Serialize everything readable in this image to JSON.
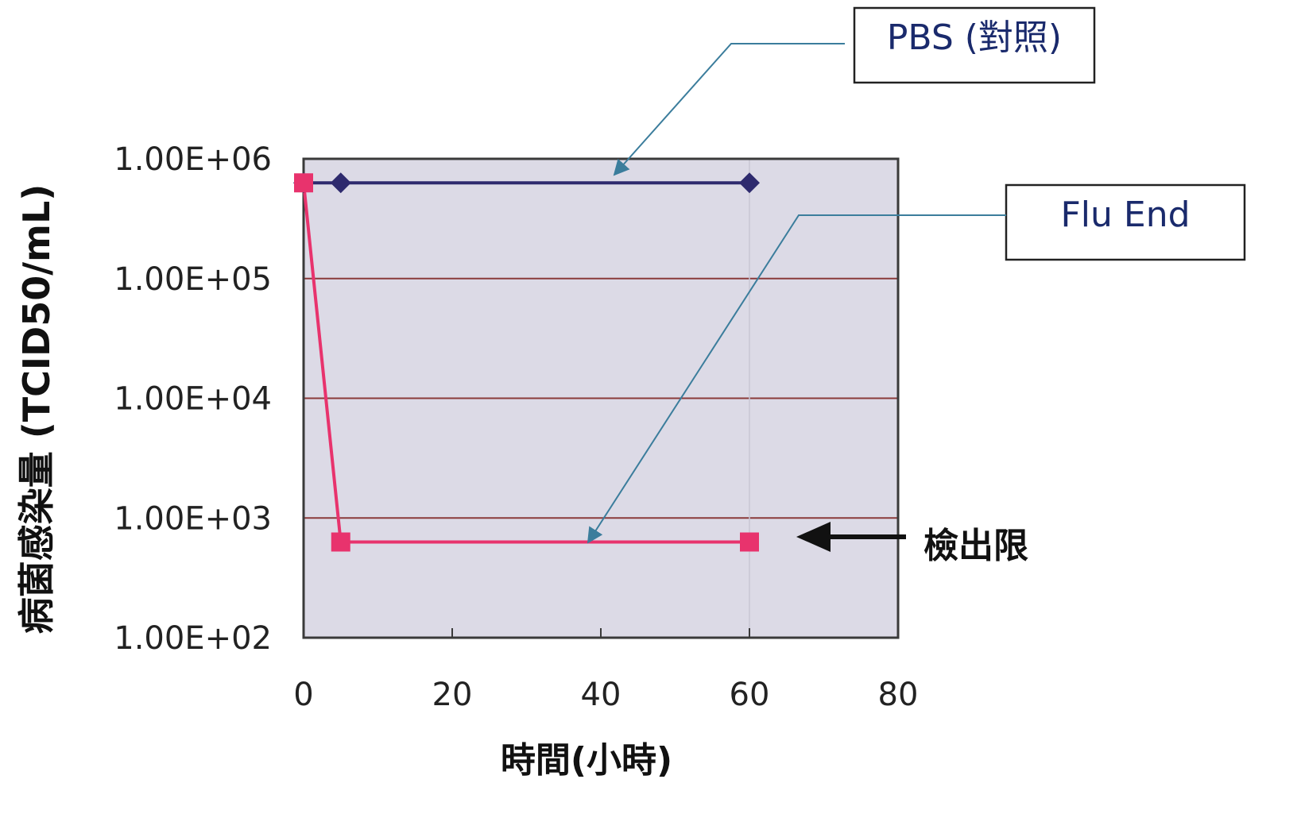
{
  "chart_data": {
    "type": "line",
    "y_scale": "log",
    "ylabel": "病菌感染量 (TCID50/mL)",
    "xlabel": "時間(小時)",
    "xlim": [
      0,
      80
    ],
    "ylim": [
      100,
      1000000
    ],
    "x_ticks": [
      "0",
      "20",
      "40",
      "60",
      "80"
    ],
    "y_ticks": [
      "1.00E+02",
      "1.00E+03",
      "1.00E+04",
      "1.00E+05",
      "1.00E+06"
    ],
    "grid": true,
    "series": [
      {
        "name": "PBS (對照)",
        "color": "#2e2a6e",
        "marker": "diamond",
        "points": [
          [
            0,
            630000
          ],
          [
            5,
            630000
          ],
          [
            60,
            630000
          ]
        ]
      },
      {
        "name": "Flu End",
        "color": "#e8336d",
        "marker": "square",
        "points": [
          [
            0,
            630000
          ],
          [
            5,
            630
          ],
          [
            60,
            630
          ]
        ]
      }
    ],
    "annotations": {
      "detection_limit_label": "檢出限"
    }
  },
  "colors": {
    "plot_background": "#dcdae6",
    "gridline": "#8a3a3a",
    "frame": "#3a3a3a",
    "callout_line": "#3b7d9c",
    "arrow": "#111111"
  }
}
